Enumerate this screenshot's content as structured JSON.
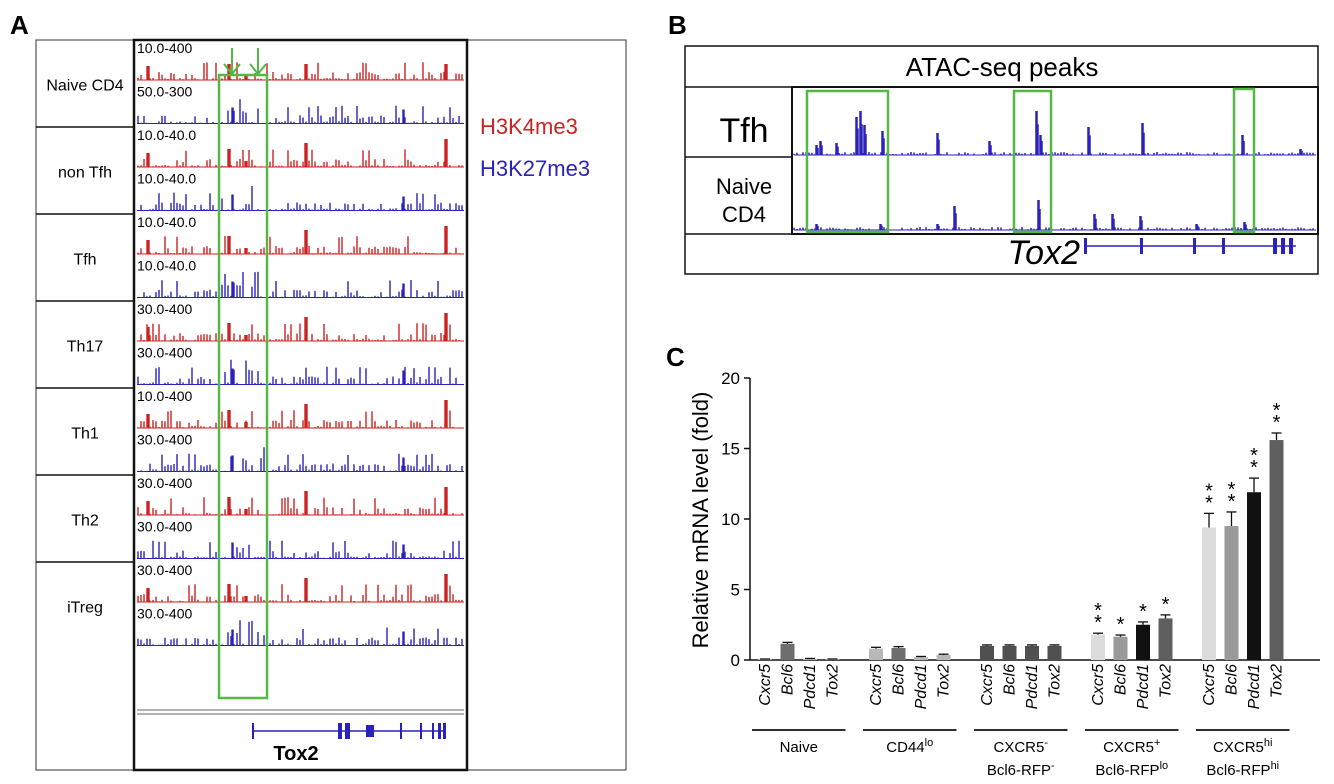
{
  "colors": {
    "red": "#cc2222",
    "blue": "#2a22bb",
    "green": "#55b844",
    "black": "#111111"
  },
  "panel_a": {
    "letter": "A",
    "legend": {
      "red": "H3K4me3",
      "blue": "H3K27me3"
    },
    "gene": "Tox2",
    "groups": [
      {
        "label": "Naive CD4",
        "tracks": [
          {
            "mark": "red",
            "scale": "10.0-400"
          },
          {
            "mark": "blue",
            "scale": "50.0-300"
          }
        ]
      },
      {
        "label": "non Tfh",
        "tracks": [
          {
            "mark": "red",
            "scale": "10.0-40.0"
          },
          {
            "mark": "blue",
            "scale": "10.0-40.0"
          }
        ]
      },
      {
        "label": "Tfh",
        "tracks": [
          {
            "mark": "red",
            "scale": "10.0-40.0"
          },
          {
            "mark": "blue",
            "scale": "10.0-40.0"
          }
        ]
      },
      {
        "label": "Th17",
        "tracks": [
          {
            "mark": "red",
            "scale": "30.0-400"
          },
          {
            "mark": "blue",
            "scale": "30.0-400"
          }
        ]
      },
      {
        "label": "Th1",
        "tracks": [
          {
            "mark": "red",
            "scale": "10.0-400"
          },
          {
            "mark": "blue",
            "scale": "30.0-400"
          }
        ]
      },
      {
        "label": "Th2",
        "tracks": [
          {
            "mark": "red",
            "scale": "30.0-400"
          },
          {
            "mark": "blue",
            "scale": "30.0-400"
          }
        ]
      },
      {
        "label": "iTreg",
        "tracks": [
          {
            "mark": "red",
            "scale": "30.0-400"
          },
          {
            "mark": "blue",
            "scale": "30.0-400"
          }
        ]
      }
    ]
  },
  "panel_b": {
    "letter": "B",
    "title": "ATAC-seq peaks",
    "rows": [
      {
        "label": "Tfh"
      },
      {
        "label": "Naive CD4"
      }
    ],
    "gene": "Tox2"
  },
  "chart_data": {
    "type": "bar",
    "letter": "C",
    "title": "",
    "ylabel": "Relative mRNA level (fold)",
    "ylim": [
      0,
      20
    ],
    "yticks": [
      0,
      5,
      10,
      15,
      20
    ],
    "genes": [
      "Cxcr5",
      "Bcl6",
      "Pdcd1",
      "Tox2"
    ],
    "groups": [
      {
        "label": "Naive",
        "label2": "",
        "color": "#b0b0b0",
        "values": [
          0.05,
          1.15,
          0.08,
          0.05
        ],
        "errors": [
          0.02,
          0.1,
          0.03,
          0.02
        ],
        "stars": [
          "",
          "",
          "",
          ""
        ]
      },
      {
        "label": "CD44",
        "sup": "lo",
        "label2": "",
        "color": "#b0b0b0",
        "values": [
          0.8,
          0.85,
          0.2,
          0.35
        ],
        "errors": [
          0.1,
          0.1,
          0.05,
          0.06
        ],
        "stars": [
          "",
          "",
          "",
          ""
        ]
      },
      {
        "label": "CXCR5",
        "sup": "-",
        "label2": "Bcl6-RFP",
        "sup2": "-",
        "color": "#505050",
        "values": [
          1.0,
          1.0,
          1.0,
          1.0
        ],
        "errors": [
          0.07,
          0.07,
          0.07,
          0.07
        ],
        "stars": [
          "",
          "",
          "",
          ""
        ]
      },
      {
        "label": "CXCR5",
        "sup": "+",
        "label2": "Bcl6-RFP",
        "sup2": "lo",
        "color": "#999999",
        "values": [
          1.8,
          1.65,
          2.5,
          2.95
        ],
        "errors": [
          0.1,
          0.12,
          0.2,
          0.25
        ],
        "stars": [
          "**",
          "*",
          "*",
          "*"
        ]
      },
      {
        "label": "CXCR5",
        "sup": "hi",
        "label2": "Bcl6-RFP",
        "sup2": "hi",
        "color": "#555555",
        "values": [
          9.4,
          9.5,
          11.9,
          15.6
        ],
        "errors": [
          1.0,
          1.0,
          1.0,
          0.5
        ],
        "stars": [
          "**",
          "**",
          "**",
          "**"
        ]
      }
    ],
    "bar_colors": [
      "#dcdcdc",
      "#9a9a9a",
      "#111111",
      "#5f5f5f"
    ]
  }
}
